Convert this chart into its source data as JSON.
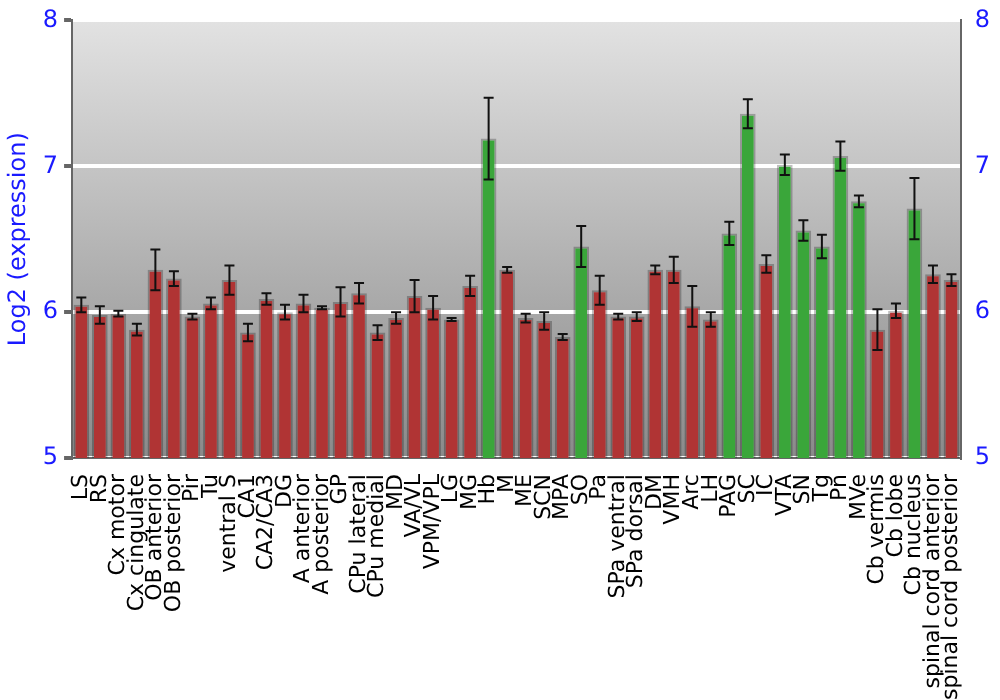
{
  "chart_data": {
    "type": "bar",
    "ylabel": "Log2 (expression)",
    "categories": [
      "LS",
      "RS",
      "Cx motor",
      "Cx cingulate",
      "OB anterior",
      "OB posterior",
      "Pir",
      "Tu",
      "ventral S",
      "CA1",
      "CA2/CA3",
      "DG",
      "A anterior",
      "A posterior",
      "GP",
      "CPu lateral",
      "CPu medial",
      "MD",
      "VA/VL",
      "VPM/VPL",
      "LG",
      "MG",
      "Hb",
      "M",
      "ME",
      "SCN",
      "MPA",
      "SO",
      "Pa",
      "SPa ventral",
      "SPa dorsal",
      "DM",
      "VMH",
      "Arc",
      "LH",
      "PAG",
      "SC",
      "IC",
      "VTA",
      "SN",
      "Tg",
      "Pn",
      "MVe",
      "Cb vermis",
      "Cb lobe",
      "Cb nucleus",
      "spinal cord anterior",
      "spinal cord posterior"
    ],
    "values": [
      6.05,
      5.98,
      5.99,
      5.88,
      6.29,
      6.23,
      5.97,
      6.06,
      6.22,
      5.86,
      6.09,
      6.0,
      6.06,
      6.03,
      6.07,
      6.13,
      5.86,
      5.96,
      6.11,
      6.03,
      5.95,
      6.18,
      7.19,
      6.29,
      5.96,
      5.94,
      5.83,
      6.45,
      6.15,
      5.97,
      5.97,
      6.29,
      6.29,
      6.04,
      5.95,
      6.54,
      7.36,
      6.33,
      7.01,
      6.56,
      6.45,
      7.07,
      6.76,
      5.88,
      6.01,
      6.71,
      6.26,
      6.22
    ],
    "errors": [
      0.05,
      0.06,
      0.02,
      0.04,
      0.14,
      0.05,
      0.02,
      0.04,
      0.1,
      0.06,
      0.04,
      0.05,
      0.06,
      0.01,
      0.1,
      0.07,
      0.05,
      0.04,
      0.11,
      0.08,
      0.01,
      0.07,
      0.28,
      0.02,
      0.03,
      0.06,
      0.02,
      0.14,
      0.1,
      0.02,
      0.03,
      0.03,
      0.09,
      0.14,
      0.05,
      0.08,
      0.1,
      0.06,
      0.07,
      0.07,
      0.08,
      0.1,
      0.04,
      0.14,
      0.05,
      0.21,
      0.06,
      0.04
    ],
    "colors": [
      "#b03434",
      "#b03434",
      "#b03434",
      "#b03434",
      "#b03434",
      "#b03434",
      "#b03434",
      "#b03434",
      "#b03434",
      "#b03434",
      "#b03434",
      "#b03434",
      "#b03434",
      "#b03434",
      "#b03434",
      "#b03434",
      "#b03434",
      "#b03434",
      "#b03434",
      "#b03434",
      "#b03434",
      "#b03434",
      "#3aa63a",
      "#b03434",
      "#b03434",
      "#b03434",
      "#b03434",
      "#3aa63a",
      "#b03434",
      "#b03434",
      "#b03434",
      "#b03434",
      "#b03434",
      "#b03434",
      "#b03434",
      "#3aa63a",
      "#3aa63a",
      "#b03434",
      "#3aa63a",
      "#3aa63a",
      "#3aa63a",
      "#3aa63a",
      "#3aa63a",
      "#b03434",
      "#b03434",
      "#3aa63a",
      "#b03434",
      "#b03434"
    ],
    "ylim": [
      5,
      8
    ],
    "yticks": [
      5,
      6,
      7,
      8
    ],
    "y2lim": [
      5,
      8
    ],
    "y2ticks": [
      5,
      6,
      7,
      8
    ],
    "grid": "y",
    "legend": false
  }
}
